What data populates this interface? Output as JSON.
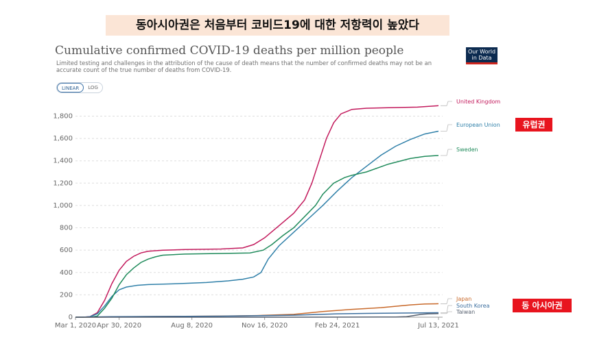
{
  "banner": "동아시아권은 처음부터 코비드19에 대한 저항력이 높았다",
  "header": {
    "title": "Cumulative confirmed COVID-19 deaths per million people",
    "subtitle": "Limited testing and challenges in the attribution of the cause of death means that the number of confirmed deaths may not be an accurate count of the true number of deaths from COVID-19.",
    "logo_line1": "Our World",
    "logo_line2": "in Data"
  },
  "controls": {
    "linear": "LINEAR",
    "log": "LOG"
  },
  "tags": {
    "europe": "유럽권",
    "east_asia": "동 아시아권"
  },
  "colors": {
    "uk": "#c2185b",
    "eu": "#2e7fa8",
    "sweden": "#1e8a5a",
    "japan": "#c8692a",
    "korea": "#3b6e9e",
    "taiwan": "#555f6e",
    "grid": "#dddddd",
    "tag": "#e8141e"
  },
  "chart_data": {
    "type": "line",
    "title": "Cumulative confirmed COVID-19 deaths per million people",
    "xlabel": "",
    "ylabel": "",
    "ylim": [
      0,
      1950
    ],
    "yticks": [
      0,
      200,
      400,
      600,
      800,
      1000,
      1200,
      1400,
      1600,
      1800
    ],
    "ytick_labels": [
      "0",
      "200",
      "400",
      "600",
      "800",
      "1,000",
      "1,200",
      "1,400",
      "1,600",
      "1,800"
    ],
    "xlim_days": [
      0,
      499
    ],
    "xticks": [
      {
        "day": 0,
        "label": "Mar 1, 2020"
      },
      {
        "day": 60,
        "label": "Apr 30, 2020"
      },
      {
        "day": 160,
        "label": "Aug 8, 2020"
      },
      {
        "day": 260,
        "label": "Nov 16, 2020"
      },
      {
        "day": 360,
        "label": "Feb 24, 2021"
      },
      {
        "day": 499,
        "label": "Jul 13, 2021"
      }
    ],
    "series": [
      {
        "name": "United Kingdom",
        "key": "uk",
        "points": [
          [
            0,
            0
          ],
          [
            10,
            0
          ],
          [
            20,
            5
          ],
          [
            30,
            40
          ],
          [
            40,
            150
          ],
          [
            50,
            300
          ],
          [
            60,
            420
          ],
          [
            70,
            500
          ],
          [
            80,
            545
          ],
          [
            90,
            575
          ],
          [
            100,
            590
          ],
          [
            120,
            600
          ],
          [
            150,
            605
          ],
          [
            200,
            610
          ],
          [
            230,
            620
          ],
          [
            245,
            650
          ],
          [
            260,
            710
          ],
          [
            280,
            820
          ],
          [
            300,
            930
          ],
          [
            315,
            1050
          ],
          [
            325,
            1200
          ],
          [
            335,
            1400
          ],
          [
            345,
            1600
          ],
          [
            355,
            1740
          ],
          [
            365,
            1820
          ],
          [
            380,
            1860
          ],
          [
            400,
            1870
          ],
          [
            430,
            1875
          ],
          [
            470,
            1880
          ],
          [
            499,
            1893
          ]
        ]
      },
      {
        "name": "European Union",
        "key": "eu",
        "points": [
          [
            0,
            0
          ],
          [
            10,
            0
          ],
          [
            20,
            5
          ],
          [
            30,
            30
          ],
          [
            40,
            100
          ],
          [
            50,
            185
          ],
          [
            60,
            245
          ],
          [
            70,
            270
          ],
          [
            85,
            285
          ],
          [
            100,
            292
          ],
          [
            140,
            300
          ],
          [
            180,
            310
          ],
          [
            210,
            325
          ],
          [
            230,
            340
          ],
          [
            245,
            360
          ],
          [
            255,
            400
          ],
          [
            265,
            520
          ],
          [
            280,
            640
          ],
          [
            300,
            760
          ],
          [
            320,
            880
          ],
          [
            340,
            1000
          ],
          [
            360,
            1130
          ],
          [
            380,
            1250
          ],
          [
            400,
            1350
          ],
          [
            420,
            1450
          ],
          [
            440,
            1530
          ],
          [
            460,
            1590
          ],
          [
            480,
            1640
          ],
          [
            499,
            1665
          ]
        ]
      },
      {
        "name": "Sweden",
        "key": "sweden",
        "points": [
          [
            0,
            0
          ],
          [
            20,
            0
          ],
          [
            30,
            10
          ],
          [
            40,
            80
          ],
          [
            50,
            170
          ],
          [
            60,
            290
          ],
          [
            70,
            380
          ],
          [
            80,
            440
          ],
          [
            90,
            490
          ],
          [
            100,
            520
          ],
          [
            110,
            540
          ],
          [
            120,
            555
          ],
          [
            150,
            565
          ],
          [
            200,
            570
          ],
          [
            240,
            575
          ],
          [
            258,
            600
          ],
          [
            270,
            650
          ],
          [
            285,
            730
          ],
          [
            300,
            800
          ],
          [
            315,
            900
          ],
          [
            330,
            1000
          ],
          [
            340,
            1100
          ],
          [
            355,
            1200
          ],
          [
            370,
            1250
          ],
          [
            380,
            1270
          ],
          [
            400,
            1300
          ],
          [
            430,
            1370
          ],
          [
            460,
            1420
          ],
          [
            480,
            1440
          ],
          [
            499,
            1447
          ]
        ]
      },
      {
        "name": "Japan",
        "key": "japan",
        "points": [
          [
            0,
            0
          ],
          [
            30,
            0
          ],
          [
            80,
            5
          ],
          [
            150,
            8
          ],
          [
            200,
            10
          ],
          [
            250,
            15
          ],
          [
            300,
            25
          ],
          [
            340,
            50
          ],
          [
            380,
            70
          ],
          [
            420,
            85
          ],
          [
            460,
            110
          ],
          [
            480,
            118
          ],
          [
            499,
            120
          ]
        ]
      },
      {
        "name": "South Korea",
        "key": "korea",
        "points": [
          [
            0,
            0
          ],
          [
            50,
            4
          ],
          [
            100,
            6
          ],
          [
            200,
            9
          ],
          [
            300,
            18
          ],
          [
            360,
            30
          ],
          [
            400,
            34
          ],
          [
            499,
            40
          ]
        ]
      },
      {
        "name": "Taiwan",
        "key": "taiwan",
        "points": [
          [
            0,
            0
          ],
          [
            300,
            0
          ],
          [
            420,
            1
          ],
          [
            440,
            1
          ],
          [
            455,
            5
          ],
          [
            465,
            15
          ],
          [
            475,
            25
          ],
          [
            485,
            30
          ],
          [
            499,
            32
          ]
        ]
      }
    ]
  }
}
